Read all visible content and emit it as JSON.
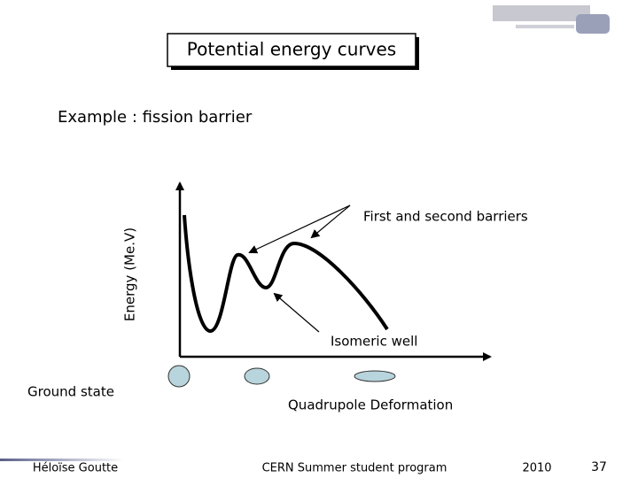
{
  "title": "Potential energy curves",
  "subtitle": "Example : fission barrier",
  "diagram": {
    "y_axis_label": "Energy (Me.V)",
    "x_axis_label": "Quadrupole Deformation",
    "barriers_label": "First and second barriers",
    "well_label": "Isomeric well",
    "ground_label": "Ground state"
  },
  "footer": {
    "author": "Héloïse Goutte",
    "event": "CERN Summer student program",
    "year": "2010",
    "page": "37"
  }
}
